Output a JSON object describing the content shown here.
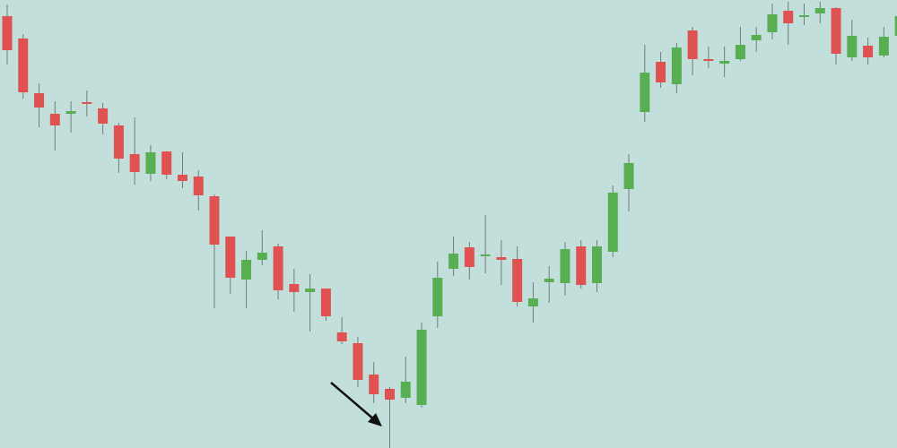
{
  "chart_data": {
    "type": "candlestick",
    "open": [
      482,
      457,
      396,
      373,
      373,
      386,
      379,
      360,
      328,
      306,
      331,
      305,
      303,
      281,
      236,
      188,
      210,
      225,
      183,
      174,
      178,
      129,
      117,
      82,
      66,
      56,
      48,
      147,
      200,
      224,
      214,
      213,
      211,
      158,
      185,
      184,
      225,
      184,
      219,
      289,
      375,
      431,
      406,
      466,
      434,
      429,
      434,
      455,
      464,
      488,
      481,
      485,
      491,
      436,
      449,
      438,
      460
    ],
    "high": [
      495,
      462,
      407,
      387,
      387,
      399,
      385,
      363,
      369,
      338,
      331,
      330,
      310,
      283,
      236,
      220,
      243,
      228,
      200,
      194,
      178,
      146,
      124,
      96,
      68,
      102,
      140,
      208,
      236,
      230,
      260,
      232,
      225,
      185,
      203,
      230,
      232,
      232,
      293,
      328,
      450,
      442,
      452,
      470,
      448,
      448,
      470,
      470,
      496,
      498,
      496,
      498,
      492,
      478,
      458,
      470,
      490
    ],
    "low": [
      428,
      390,
      358,
      332,
      352,
      370,
      350,
      307,
      294,
      298,
      300,
      290,
      265,
      156,
      172,
      156,
      204,
      166,
      152,
      130,
      142,
      116,
      68,
      50,
      0,
      50,
      45,
      134,
      192,
      188,
      195,
      182,
      158,
      140,
      162,
      170,
      178,
      174,
      213,
      264,
      364,
      402,
      396,
      416,
      424,
      414,
      432,
      442,
      456,
      450,
      472,
      474,
      428,
      432,
      428,
      436,
      455
    ],
    "close": [
      444,
      397,
      380,
      360,
      376,
      384,
      362,
      323,
      308,
      330,
      305,
      298,
      282,
      227,
      190,
      210,
      218,
      176,
      174,
      178,
      147,
      119,
      76,
      60,
      54,
      74,
      132,
      190,
      217,
      202,
      216,
      210,
      163,
      167,
      189,
      222,
      182,
      225,
      285,
      318,
      419,
      408,
      447,
      434,
      432,
      432,
      450,
      461,
      484,
      474,
      483,
      491,
      440,
      460,
      436,
      459,
      482
    ],
    "ylim": [
      0,
      500
    ],
    "up_color": "#58af51",
    "down_color": "#e05252",
    "wick_color": "#6f7c7a",
    "background": "#c3dfdb"
  }
}
